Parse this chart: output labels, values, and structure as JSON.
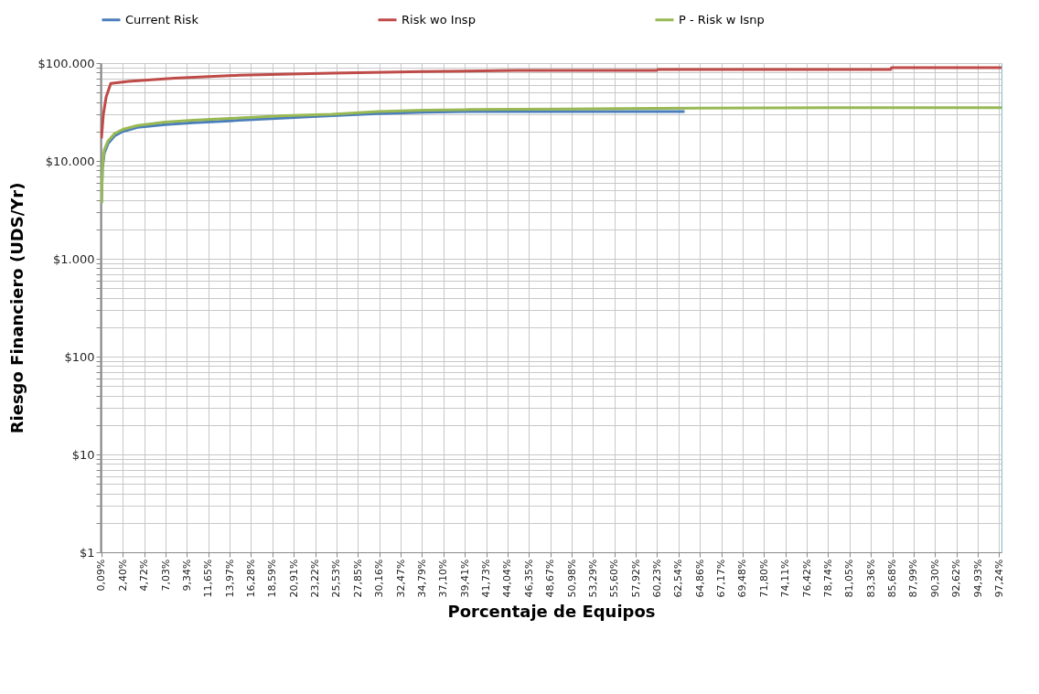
{
  "chart_data": {
    "type": "line",
    "xlabel": "Porcentaje de Equipos",
    "ylabel": "Riesgo Financiero (UDS/Yr)",
    "log": true,
    "grid": true,
    "legend": "top",
    "xlim": [
      0,
      97.5
    ],
    "xticks": [
      {
        "value": 0.09,
        "label": "0,09%"
      },
      {
        "value": 2.4,
        "label": "2,40%"
      },
      {
        "value": 4.72,
        "label": "4,72%"
      },
      {
        "value": 7.03,
        "label": "7,03%"
      },
      {
        "value": 9.34,
        "label": "9,34%"
      },
      {
        "value": 11.65,
        "label": "11,65%"
      },
      {
        "value": 13.97,
        "label": "13,97%"
      },
      {
        "value": 16.28,
        "label": "16,28%"
      },
      {
        "value": 18.59,
        "label": "18,59%"
      },
      {
        "value": 20.91,
        "label": "20,91%"
      },
      {
        "value": 23.22,
        "label": "23,22%"
      },
      {
        "value": 25.53,
        "label": "25,53%"
      },
      {
        "value": 27.85,
        "label": "27,85%"
      },
      {
        "value": 30.16,
        "label": "30,16%"
      },
      {
        "value": 32.47,
        "label": "32,47%"
      },
      {
        "value": 34.79,
        "label": "34,79%"
      },
      {
        "value": 37.1,
        "label": "37,10%"
      },
      {
        "value": 39.41,
        "label": "39,41%"
      },
      {
        "value": 41.73,
        "label": "41,73%"
      },
      {
        "value": 44.04,
        "label": "44,04%"
      },
      {
        "value": 46.35,
        "label": "46,35%"
      },
      {
        "value": 48.67,
        "label": "48,67%"
      },
      {
        "value": 50.98,
        "label": "50,98%"
      },
      {
        "value": 53.29,
        "label": "53,29%"
      },
      {
        "value": 55.6,
        "label": "55,60%"
      },
      {
        "value": 57.92,
        "label": "57,92%"
      },
      {
        "value": 60.23,
        "label": "60,23%"
      },
      {
        "value": 62.54,
        "label": "62,54%"
      },
      {
        "value": 64.86,
        "label": "64,86%"
      },
      {
        "value": 67.17,
        "label": "67,17%"
      },
      {
        "value": 69.48,
        "label": "69,48%"
      },
      {
        "value": 71.8,
        "label": "71,80%"
      },
      {
        "value": 74.11,
        "label": "74,11%"
      },
      {
        "value": 76.42,
        "label": "76,42%"
      },
      {
        "value": 78.74,
        "label": "78,74%"
      },
      {
        "value": 81.05,
        "label": "81,05%"
      },
      {
        "value": 83.36,
        "label": "83,36%"
      },
      {
        "value": 85.68,
        "label": "85,68%"
      },
      {
        "value": 87.99,
        "label": "87,99%"
      },
      {
        "value": 90.3,
        "label": "90,30%"
      },
      {
        "value": 92.62,
        "label": "92,62%"
      },
      {
        "value": 94.93,
        "label": "94,93%"
      },
      {
        "value": 97.24,
        "label": "97,24%"
      }
    ],
    "ylim": [
      1,
      100000
    ],
    "yticks": [
      {
        "value": 1,
        "label": "$1"
      },
      {
        "value": 2,
        "label": null
      },
      {
        "value": 3,
        "label": null
      },
      {
        "value": 4,
        "label": null
      },
      {
        "value": 5,
        "label": null
      },
      {
        "value": 6,
        "label": null
      },
      {
        "value": 7,
        "label": null
      },
      {
        "value": 8,
        "label": null
      },
      {
        "value": 9,
        "label": null
      },
      {
        "value": 10,
        "label": "$10"
      },
      {
        "value": 20,
        "label": null
      },
      {
        "value": 30,
        "label": null
      },
      {
        "value": 40,
        "label": null
      },
      {
        "value": 50,
        "label": null
      },
      {
        "value": 60,
        "label": null
      },
      {
        "value": 70,
        "label": null
      },
      {
        "value": 80,
        "label": null
      },
      {
        "value": 90,
        "label": null
      },
      {
        "value": 100,
        "label": "$100"
      },
      {
        "value": 200,
        "label": null
      },
      {
        "value": 300,
        "label": null
      },
      {
        "value": 400,
        "label": null
      },
      {
        "value": 500,
        "label": null
      },
      {
        "value": 600,
        "label": null
      },
      {
        "value": 700,
        "label": null
      },
      {
        "value": 800,
        "label": null
      },
      {
        "value": 900,
        "label": null
      },
      {
        "value": 1000,
        "label": "$1.000"
      },
      {
        "value": 2000,
        "label": null
      },
      {
        "value": 3000,
        "label": null
      },
      {
        "value": 4000,
        "label": null
      },
      {
        "value": 5000,
        "label": null
      },
      {
        "value": 6000,
        "label": null
      },
      {
        "value": 7000,
        "label": null
      },
      {
        "value": 8000,
        "label": null
      },
      {
        "value": 9000,
        "label": null
      },
      {
        "value": 10000,
        "label": "$10.000"
      },
      {
        "value": 20000,
        "label": null
      },
      {
        "value": 30000,
        "label": null
      },
      {
        "value": 40000,
        "label": null
      },
      {
        "value": 50000,
        "label": null
      },
      {
        "value": 60000,
        "label": null
      },
      {
        "value": 70000,
        "label": null
      },
      {
        "value": 80000,
        "label": null
      },
      {
        "value": 90000,
        "label": null
      },
      {
        "value": 100000,
        "label": "$100.000"
      }
    ],
    "series": [
      {
        "name": "Current Risk",
        "color": "#4a7ebb",
        "x": [
          0.09,
          0.2,
          0.4,
          0.8,
          1.5,
          2.4,
          4,
          7,
          10,
          15,
          20,
          25,
          30,
          35,
          40,
          50,
          63.2
        ],
        "values": [
          3700,
          8500,
          12000,
          15000,
          18000,
          20000,
          22000,
          23500,
          24500,
          26000,
          27500,
          29000,
          30500,
          31500,
          32000,
          32000,
          32000
        ]
      },
      {
        "name": "Risk wo Insp",
        "color": "#be4b48",
        "x": [
          0.09,
          0.3,
          0.6,
          1.1,
          3,
          8,
          15,
          25,
          35,
          45,
          60.2,
          60.3,
          85.5,
          85.6,
          97.5
        ],
        "values": [
          17000,
          30000,
          45000,
          62000,
          65000,
          70000,
          75000,
          79000,
          82000,
          84000,
          84000,
          86000,
          86000,
          90000,
          90000
        ]
      },
      {
        "name": "P - Risk w Isnp",
        "color": "#98b954",
        "x": [
          0.09,
          0.2,
          0.4,
          0.8,
          1.5,
          2.4,
          4,
          7,
          10,
          15,
          20,
          25,
          30,
          35,
          40,
          50,
          60,
          80,
          97.5
        ],
        "values": [
          3700,
          9000,
          13000,
          16000,
          19000,
          21000,
          23000,
          25000,
          26000,
          27500,
          29000,
          30000,
          32000,
          33000,
          33500,
          34000,
          34500,
          35000,
          35000
        ]
      }
    ]
  }
}
